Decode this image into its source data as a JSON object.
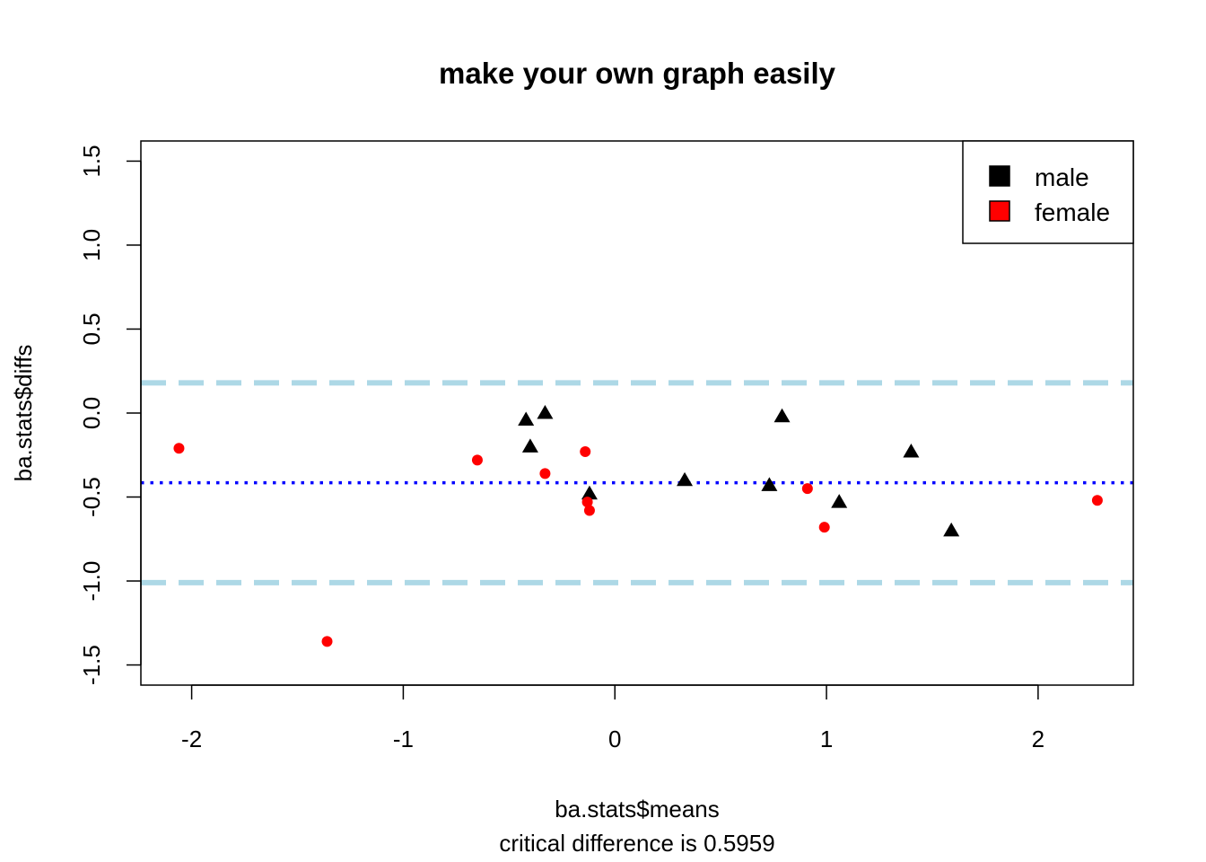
{
  "chart_data": {
    "type": "scatter",
    "title": "make your own graph easily",
    "xlabel": "ba.stats$means",
    "ylabel": "ba.stats$diffs",
    "subtitle": "critical difference is 0.5959",
    "xlim": [
      -2.24,
      2.45
    ],
    "ylim": [
      -1.62,
      1.62
    ],
    "x_ticks": [
      -2,
      -1,
      0,
      1,
      2
    ],
    "x_tick_labels": [
      "-2",
      "-1",
      "0",
      "1",
      "2"
    ],
    "y_ticks": [
      -1.5,
      -1.0,
      -0.5,
      0.0,
      0.5,
      1.0,
      1.5
    ],
    "y_tick_labels": [
      "-1.5",
      "-1.0",
      "-0.5",
      "0.0",
      "0.5",
      "1.0",
      "1.5"
    ],
    "grid": false,
    "legend": {
      "position": "top-right",
      "entries": [
        {
          "label": "male",
          "color": "#000000"
        },
        {
          "label": "female",
          "color": "#ff0000"
        }
      ]
    },
    "reference_lines": [
      {
        "name": "mean difference",
        "y": -0.415,
        "color": "#0000ff",
        "style": "dotted"
      },
      {
        "name": "upper limit",
        "y": 0.18,
        "color": "#add8e6",
        "style": "dashed"
      },
      {
        "name": "lower limit",
        "y": -1.01,
        "color": "#add8e6",
        "style": "dashed"
      }
    ],
    "series": [
      {
        "name": "male",
        "marker": "triangle",
        "color": "#000000",
        "points": [
          {
            "x": -0.42,
            "y": -0.04
          },
          {
            "x": -0.4,
            "y": -0.2
          },
          {
            "x": -0.33,
            "y": 0.0
          },
          {
            "x": -0.12,
            "y": -0.48
          },
          {
            "x": 0.33,
            "y": -0.4
          },
          {
            "x": 0.73,
            "y": -0.43
          },
          {
            "x": 0.79,
            "y": -0.02
          },
          {
            "x": 1.06,
            "y": -0.53
          },
          {
            "x": 1.4,
            "y": -0.23
          },
          {
            "x": 1.59,
            "y": -0.7
          }
        ]
      },
      {
        "name": "female",
        "marker": "circle",
        "color": "#ff0000",
        "points": [
          {
            "x": -2.06,
            "y": -0.21
          },
          {
            "x": -1.36,
            "y": -1.36
          },
          {
            "x": -0.65,
            "y": -0.28
          },
          {
            "x": -0.33,
            "y": -0.36
          },
          {
            "x": -0.14,
            "y": -0.23
          },
          {
            "x": -0.13,
            "y": -0.53
          },
          {
            "x": -0.12,
            "y": -0.58
          },
          {
            "x": 0.91,
            "y": -0.45
          },
          {
            "x": 0.99,
            "y": -0.68
          },
          {
            "x": 2.28,
            "y": -0.52
          }
        ]
      }
    ]
  }
}
